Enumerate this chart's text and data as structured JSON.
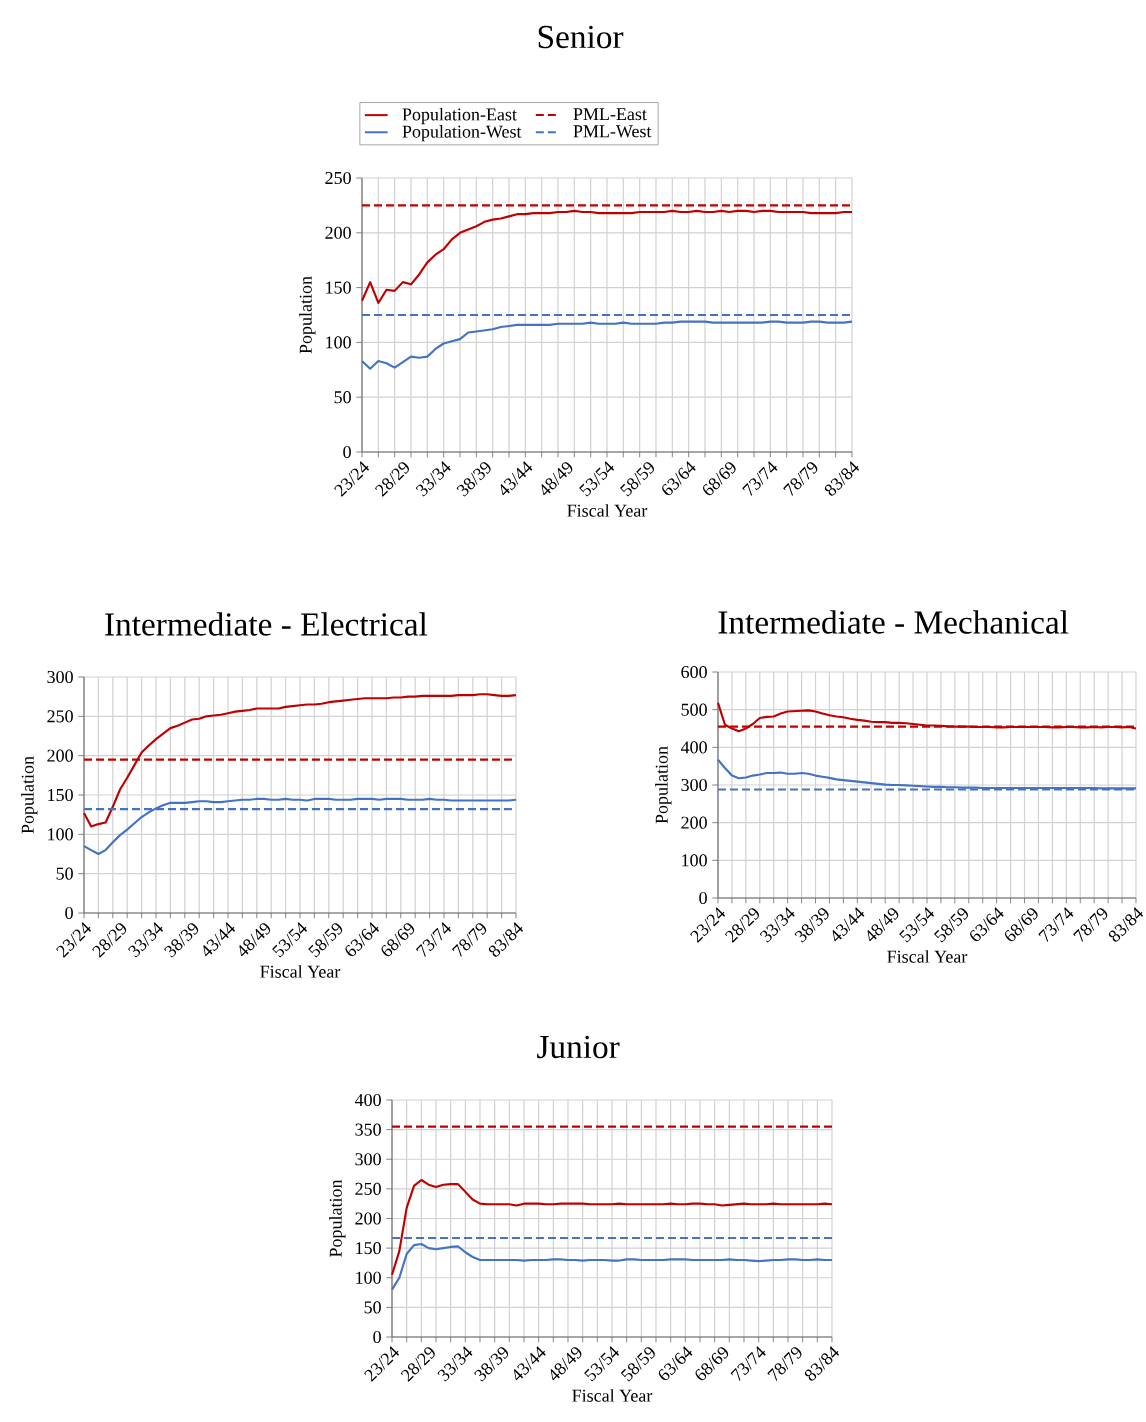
{
  "chart_data": [
    {
      "type": "line",
      "title": "Senior",
      "xlabel": "Fiscal Year",
      "ylabel": "Population",
      "legend": "top",
      "grid": true,
      "ylim": [
        0,
        250
      ],
      "yticks": [
        0,
        50,
        100,
        150,
        200,
        250
      ],
      "categories": [
        "23/24",
        null,
        null,
        null,
        null,
        "28/29",
        null,
        null,
        null,
        null,
        "33/34",
        null,
        null,
        null,
        null,
        "38/39",
        null,
        null,
        null,
        null,
        "43/44",
        null,
        null,
        null,
        null,
        "48/49",
        null,
        null,
        null,
        null,
        "53/54",
        null,
        null,
        null,
        null,
        "58/59",
        null,
        null,
        null,
        null,
        "63/64",
        null,
        null,
        null,
        null,
        "68/69",
        null,
        null,
        null,
        null,
        "73/74",
        null,
        null,
        null,
        null,
        "78/79",
        null,
        null,
        null,
        null,
        "83/84"
      ],
      "series": [
        {
          "name": "Population-East",
          "color": "#c00000",
          "line_style": "solid",
          "values": [
            138,
            155,
            136,
            148,
            147,
            155,
            153,
            162,
            173,
            180,
            185,
            194,
            200,
            203,
            206,
            210,
            212,
            213,
            215,
            217,
            217,
            218,
            218,
            218,
            219,
            219,
            220,
            219,
            219,
            218,
            218,
            218,
            218,
            218,
            219,
            219,
            219,
            219,
            220,
            219,
            219,
            220,
            219,
            219,
            220,
            219,
            220,
            220,
            219,
            220,
            220,
            219,
            219,
            219,
            219,
            218,
            218,
            218,
            218,
            219,
            219
          ]
        },
        {
          "name": "PML-East",
          "color": "#c00000",
          "line_style": "dashed",
          "values": [
            225,
            225,
            225,
            225,
            225,
            225,
            225,
            225,
            225,
            225,
            225,
            225,
            225,
            225,
            225,
            225,
            225,
            225,
            225,
            225,
            225,
            225,
            225,
            225,
            225,
            225,
            225,
            225,
            225,
            225,
            225,
            225,
            225,
            225,
            225,
            225,
            225,
            225,
            225,
            225,
            225,
            225,
            225,
            225,
            225,
            225,
            225,
            225,
            225,
            225,
            225,
            225,
            225,
            225,
            225,
            225,
            225,
            225,
            225,
            225,
            225
          ]
        },
        {
          "name": "Population-West",
          "color": "#4472c4",
          "line_style": "solid",
          "values": [
            83,
            76,
            83,
            81,
            77,
            82,
            87,
            86,
            87,
            94,
            99,
            101,
            103,
            109,
            110,
            111,
            112,
            114,
            115,
            116,
            116,
            116,
            116,
            116,
            117,
            117,
            117,
            117,
            118,
            117,
            117,
            117,
            118,
            117,
            117,
            117,
            117,
            118,
            118,
            119,
            119,
            119,
            119,
            118,
            118,
            118,
            118,
            118,
            118,
            118,
            119,
            119,
            118,
            118,
            118,
            119,
            119,
            118,
            118,
            118,
            119
          ]
        },
        {
          "name": "PML-West",
          "color": "#4472c4",
          "line_style": "dashed",
          "values": [
            125,
            125,
            125,
            125,
            125,
            125,
            125,
            125,
            125,
            125,
            125,
            125,
            125,
            125,
            125,
            125,
            125,
            125,
            125,
            125,
            125,
            125,
            125,
            125,
            125,
            125,
            125,
            125,
            125,
            125,
            125,
            125,
            125,
            125,
            125,
            125,
            125,
            125,
            125,
            125,
            125,
            125,
            125,
            125,
            125,
            125,
            125,
            125,
            125,
            125,
            125,
            125,
            125,
            125,
            125,
            125,
            125,
            125,
            125,
            125,
            125
          ]
        }
      ]
    },
    {
      "type": "line",
      "title": "Intermediate - Electrical",
      "xlabel": "Fiscal Year",
      "ylabel": "Population",
      "grid": true,
      "ylim": [
        0,
        300
      ],
      "yticks": [
        0,
        50,
        100,
        150,
        200,
        250,
        300
      ],
      "categories": [
        "23/24",
        null,
        null,
        null,
        null,
        "28/29",
        null,
        null,
        null,
        null,
        "33/34",
        null,
        null,
        null,
        null,
        "38/39",
        null,
        null,
        null,
        null,
        "43/44",
        null,
        null,
        null,
        null,
        "48/49",
        null,
        null,
        null,
        null,
        "53/54",
        null,
        null,
        null,
        null,
        "58/59",
        null,
        null,
        null,
        null,
        "63/64",
        null,
        null,
        null,
        null,
        "68/69",
        null,
        null,
        null,
        null,
        "73/74",
        null,
        null,
        null,
        null,
        "78/79",
        null,
        null,
        null,
        null,
        "83/84"
      ],
      "series": [
        {
          "color": "#c00000",
          "line_style": "solid",
          "values": [
            127,
            110,
            113,
            115,
            135,
            157,
            172,
            188,
            204,
            213,
            221,
            228,
            235,
            238,
            242,
            246,
            247,
            250,
            251,
            252,
            254,
            256,
            257,
            258,
            260,
            260,
            260,
            260,
            262,
            263,
            264,
            265,
            265,
            266,
            268,
            269,
            270,
            271,
            272,
            273,
            273,
            273,
            273,
            274,
            274,
            275,
            275,
            276,
            276,
            276,
            276,
            276,
            277,
            277,
            277,
            278,
            278,
            277,
            276,
            276,
            277
          ]
        },
        {
          "color": "#c00000",
          "line_style": "dashed",
          "values": [
            195,
            195,
            195,
            195,
            195,
            195,
            195,
            195,
            195,
            195,
            195,
            195,
            195,
            195,
            195,
            195,
            195,
            195,
            195,
            195,
            195,
            195,
            195,
            195,
            195,
            195,
            195,
            195,
            195,
            195,
            195,
            195,
            195,
            195,
            195,
            195,
            195,
            195,
            195,
            195,
            195,
            195,
            195,
            195,
            195,
            195,
            195,
            195,
            195,
            195,
            195,
            195,
            195,
            195,
            195,
            195,
            195,
            195,
            195,
            195,
            195
          ]
        },
        {
          "color": "#4472c4",
          "line_style": "solid",
          "values": [
            85,
            80,
            75,
            80,
            90,
            99,
            106,
            114,
            122,
            128,
            133,
            137,
            140,
            140,
            140,
            141,
            142,
            142,
            141,
            141,
            142,
            143,
            144,
            144,
            145,
            145,
            144,
            144,
            145,
            144,
            144,
            143,
            145,
            145,
            145,
            144,
            144,
            144,
            145,
            145,
            145,
            144,
            145,
            145,
            145,
            144,
            144,
            144,
            145,
            144,
            144,
            143,
            143,
            143,
            143,
            143,
            143,
            143,
            143,
            143,
            144
          ]
        },
        {
          "color": "#4472c4",
          "line_style": "dashed",
          "values": [
            132,
            132,
            132,
            132,
            132,
            132,
            132,
            132,
            132,
            132,
            132,
            132,
            132,
            132,
            132,
            132,
            132,
            132,
            132,
            132,
            132,
            132,
            132,
            132,
            132,
            132,
            132,
            132,
            132,
            132,
            132,
            132,
            132,
            132,
            132,
            132,
            132,
            132,
            132,
            132,
            132,
            132,
            132,
            132,
            132,
            132,
            132,
            132,
            132,
            132,
            132,
            132,
            132,
            132,
            132,
            132,
            132,
            132,
            132,
            132,
            132
          ]
        }
      ]
    },
    {
      "type": "line",
      "title": "Intermediate - Mechanical",
      "xlabel": "Fiscal Year",
      "ylabel": "Population",
      "grid": true,
      "ylim": [
        0,
        600
      ],
      "yticks": [
        0,
        100,
        200,
        300,
        400,
        500,
        600
      ],
      "categories": [
        "23/24",
        null,
        null,
        null,
        null,
        "28/29",
        null,
        null,
        null,
        null,
        "33/34",
        null,
        null,
        null,
        null,
        "38/39",
        null,
        null,
        null,
        null,
        "43/44",
        null,
        null,
        null,
        null,
        "48/49",
        null,
        null,
        null,
        null,
        "53/54",
        null,
        null,
        null,
        null,
        "58/59",
        null,
        null,
        null,
        null,
        "63/64",
        null,
        null,
        null,
        null,
        "68/69",
        null,
        null,
        null,
        null,
        "73/74",
        null,
        null,
        null,
        null,
        "78/79",
        null,
        null,
        null,
        null,
        "83/84"
      ],
      "series": [
        {
          "color": "#c00000",
          "line_style": "solid",
          "values": [
            518,
            460,
            450,
            443,
            450,
            462,
            478,
            481,
            482,
            490,
            495,
            496,
            497,
            498,
            495,
            490,
            485,
            482,
            480,
            476,
            473,
            471,
            468,
            467,
            467,
            465,
            465,
            464,
            462,
            460,
            458,
            458,
            457,
            456,
            455,
            455,
            455,
            454,
            454,
            454,
            453,
            453,
            454,
            454,
            454,
            454,
            454,
            454,
            453,
            453,
            454,
            454,
            453,
            453,
            454,
            453,
            454,
            454,
            453,
            454,
            450
          ]
        },
        {
          "color": "#c00000",
          "line_style": "dashed",
          "values": [
            455,
            455,
            455,
            455,
            455,
            455,
            455,
            455,
            455,
            455,
            455,
            455,
            455,
            455,
            455,
            455,
            455,
            455,
            455,
            455,
            455,
            455,
            455,
            455,
            455,
            455,
            455,
            455,
            455,
            455,
            455,
            455,
            455,
            455,
            455,
            455,
            455,
            455,
            455,
            455,
            455,
            455,
            455,
            455,
            455,
            455,
            455,
            455,
            455,
            455,
            455,
            455,
            455,
            455,
            455,
            455,
            455,
            455,
            455,
            455,
            455
          ]
        },
        {
          "color": "#4472c4",
          "line_style": "solid",
          "values": [
            367,
            345,
            325,
            318,
            320,
            325,
            328,
            332,
            332,
            333,
            330,
            330,
            332,
            330,
            325,
            322,
            319,
            315,
            313,
            311,
            309,
            307,
            305,
            303,
            301,
            300,
            300,
            299,
            298,
            297,
            296,
            295,
            295,
            294,
            294,
            293,
            293,
            293,
            292,
            292,
            292,
            292,
            292,
            292,
            292,
            292,
            292,
            292,
            292,
            292,
            292,
            292,
            292,
            292,
            292,
            291,
            291,
            291,
            291,
            291,
            291
          ]
        },
        {
          "color": "#4472c4",
          "line_style": "dashed",
          "values": [
            288,
            288,
            288,
            288,
            288,
            288,
            288,
            288,
            288,
            288,
            288,
            288,
            288,
            288,
            288,
            288,
            288,
            288,
            288,
            288,
            288,
            288,
            288,
            288,
            288,
            288,
            288,
            288,
            288,
            288,
            288,
            288,
            288,
            288,
            288,
            288,
            288,
            288,
            288,
            288,
            288,
            288,
            288,
            288,
            288,
            288,
            288,
            288,
            288,
            288,
            288,
            288,
            288,
            288,
            288,
            288,
            288,
            288,
            288,
            288,
            288
          ]
        }
      ]
    },
    {
      "type": "line",
      "title": "Junior",
      "xlabel": "Fiscal Year",
      "ylabel": "Population",
      "grid": true,
      "ylim": [
        0,
        400
      ],
      "yticks": [
        0,
        50,
        100,
        150,
        200,
        250,
        300,
        350,
        400
      ],
      "categories": [
        "23/24",
        null,
        null,
        null,
        null,
        "28/29",
        null,
        null,
        null,
        null,
        "33/34",
        null,
        null,
        null,
        null,
        "38/39",
        null,
        null,
        null,
        null,
        "43/44",
        null,
        null,
        null,
        null,
        "48/49",
        null,
        null,
        null,
        null,
        "53/54",
        null,
        null,
        null,
        null,
        "58/59",
        null,
        null,
        null,
        null,
        "63/64",
        null,
        null,
        null,
        null,
        "68/69",
        null,
        null,
        null,
        null,
        "73/74",
        null,
        null,
        null,
        null,
        "78/79",
        null,
        null,
        null,
        null,
        "83/84"
      ],
      "series": [
        {
          "color": "#c00000",
          "line_style": "solid",
          "values": [
            105,
            145,
            218,
            255,
            265,
            257,
            253,
            257,
            258,
            258,
            245,
            232,
            225,
            224,
            224,
            224,
            224,
            222,
            225,
            225,
            225,
            224,
            224,
            225,
            225,
            225,
            225,
            224,
            224,
            224,
            224,
            225,
            224,
            224,
            224,
            224,
            224,
            224,
            225,
            224,
            224,
            225,
            225,
            224,
            224,
            222,
            223,
            224,
            225,
            224,
            224,
            224,
            225,
            224,
            224,
            224,
            224,
            224,
            224,
            225,
            224
          ]
        },
        {
          "color": "#c00000",
          "line_style": "dashed",
          "values": [
            355,
            355,
            355,
            355,
            355,
            355,
            355,
            355,
            355,
            355,
            355,
            355,
            355,
            355,
            355,
            355,
            355,
            355,
            355,
            355,
            355,
            355,
            355,
            355,
            355,
            355,
            355,
            355,
            355,
            355,
            355,
            355,
            355,
            355,
            355,
            355,
            355,
            355,
            355,
            355,
            355,
            355,
            355,
            355,
            355,
            355,
            355,
            355,
            355,
            355,
            355,
            355,
            355,
            355,
            355,
            355,
            355,
            355,
            355,
            355,
            355
          ]
        },
        {
          "color": "#4472c4",
          "line_style": "solid",
          "values": [
            80,
            100,
            140,
            155,
            157,
            150,
            148,
            150,
            152,
            153,
            143,
            135,
            130,
            130,
            130,
            130,
            130,
            130,
            129,
            130,
            130,
            130,
            131,
            131,
            130,
            130,
            129,
            130,
            130,
            130,
            129,
            129,
            131,
            131,
            130,
            130,
            130,
            130,
            131,
            131,
            131,
            130,
            130,
            130,
            130,
            130,
            131,
            130,
            130,
            129,
            128,
            129,
            130,
            130,
            131,
            131,
            130,
            130,
            131,
            130,
            130
          ]
        },
        {
          "color": "#4472c4",
          "line_style": "dashed",
          "values": [
            167,
            167,
            167,
            167,
            167,
            167,
            167,
            167,
            167,
            167,
            167,
            167,
            167,
            167,
            167,
            167,
            167,
            167,
            167,
            167,
            167,
            167,
            167,
            167,
            167,
            167,
            167,
            167,
            167,
            167,
            167,
            167,
            167,
            167,
            167,
            167,
            167,
            167,
            167,
            167,
            167,
            167,
            167,
            167,
            167,
            167,
            167,
            167,
            167,
            167,
            167,
            167,
            167,
            167,
            167,
            167,
            167,
            167,
            167,
            167,
            167
          ]
        }
      ]
    }
  ]
}
